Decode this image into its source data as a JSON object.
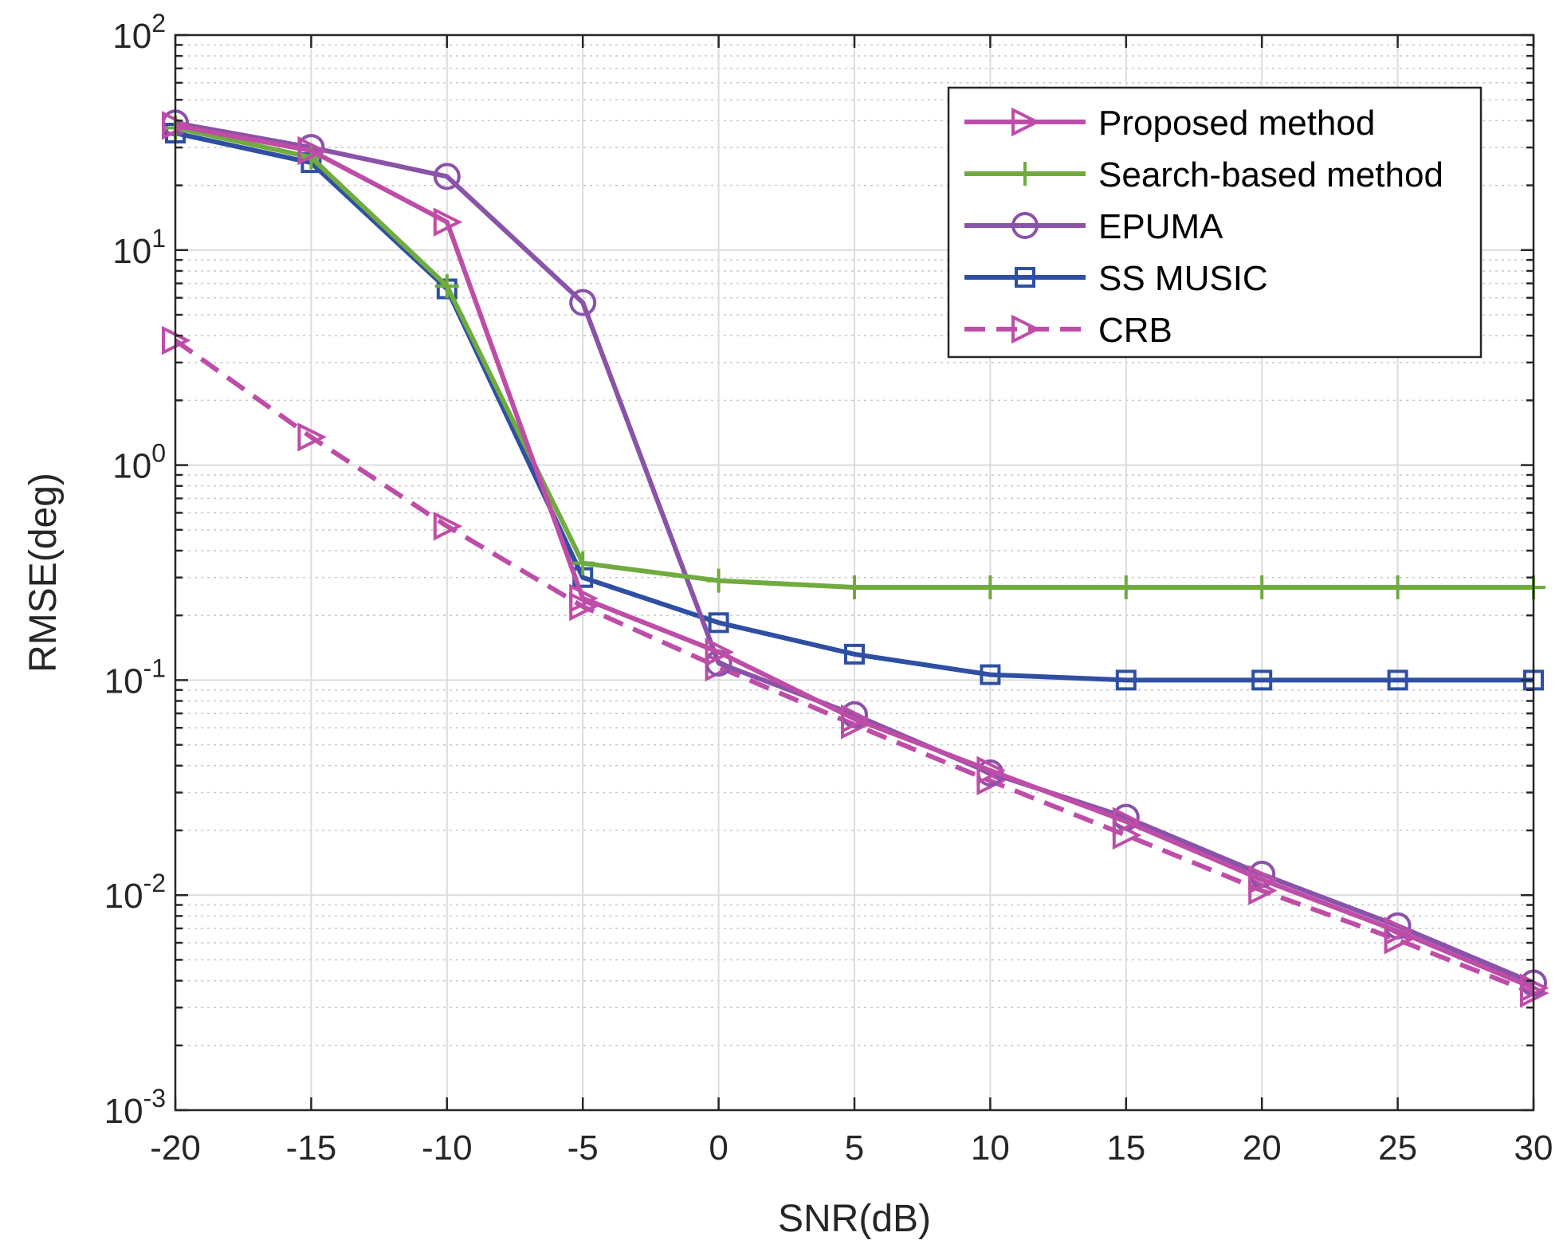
{
  "chart_data": {
    "type": "line",
    "title": "",
    "xlabel": "SNR(dB)",
    "ylabel": "RMSE(deg)",
    "yscale": "log",
    "xlim": [
      -20,
      30
    ],
    "ylim": [
      0.001,
      100
    ],
    "grid": true,
    "minor_grid": true,
    "legend_position": "top-right",
    "x": [
      -20,
      -15,
      -10,
      -5,
      0,
      5,
      10,
      15,
      20,
      25,
      30
    ],
    "x_tick_labels": [
      "-20",
      "-15",
      "-10",
      "-5",
      "0",
      "5",
      "10",
      "15",
      "20",
      "25",
      "30"
    ],
    "y_ticks": [
      {
        "value": 0.001,
        "base": "10",
        "exp": "-3"
      },
      {
        "value": 0.01,
        "base": "10",
        "exp": "-2"
      },
      {
        "value": 0.1,
        "base": "10",
        "exp": "-1"
      },
      {
        "value": 1,
        "base": "10",
        "exp": "0"
      },
      {
        "value": 10,
        "base": "10",
        "exp": "1"
      },
      {
        "value": 100,
        "base": "10",
        "exp": "2"
      }
    ],
    "series": [
      {
        "name": "Proposed method",
        "color": "#BE4DA8",
        "dash": "solid",
        "marker": "triangle-right",
        "values": [
          38,
          29,
          13.5,
          0.24,
          0.135,
          0.066,
          0.038,
          0.022,
          0.0118,
          0.0068,
          0.0037
        ]
      },
      {
        "name": "Search-based method",
        "color": "#6FAB3E",
        "dash": "solid",
        "marker": "plus",
        "values": [
          37,
          27,
          6.8,
          0.35,
          0.29,
          0.27,
          0.27,
          0.27,
          0.27,
          0.27,
          0.27
        ]
      },
      {
        "name": "EPUMA",
        "color": "#8A52A8",
        "dash": "solid",
        "marker": "circle",
        "values": [
          39,
          30,
          22,
          5.7,
          0.12,
          0.069,
          0.037,
          0.023,
          0.0125,
          0.0072,
          0.0039
        ]
      },
      {
        "name": "SS MUSIC",
        "color": "#2E4FA3",
        "dash": "solid",
        "marker": "square",
        "values": [
          35,
          25.5,
          6.6,
          0.3,
          0.185,
          0.132,
          0.106,
          0.1,
          0.1,
          0.1,
          0.1
        ]
      },
      {
        "name": "CRB",
        "color": "#BE4DA8",
        "dash": "dashed",
        "marker": "triangle-right",
        "values": [
          3.8,
          1.35,
          0.52,
          0.22,
          0.115,
          0.062,
          0.034,
          0.019,
          0.0105,
          0.0062,
          0.0035
        ]
      }
    ]
  }
}
